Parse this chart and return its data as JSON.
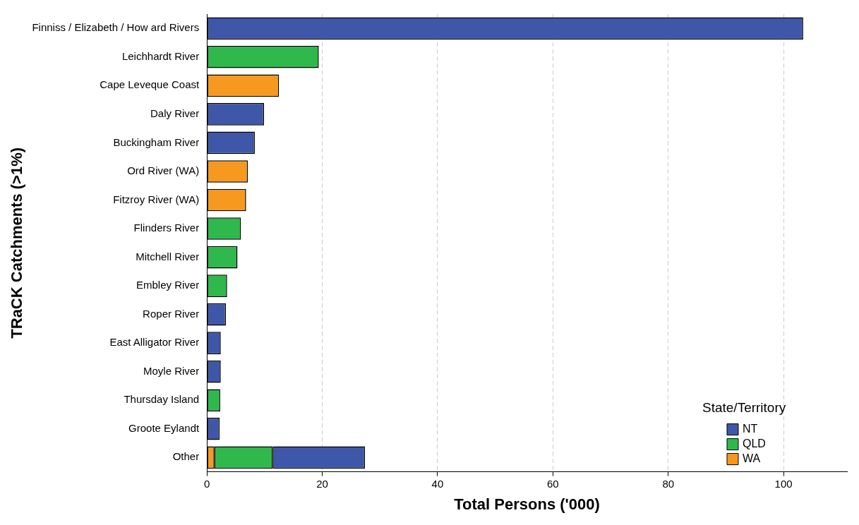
{
  "chart_data": {
    "type": "bar",
    "orientation": "horizontal",
    "stacked": true,
    "xlabel": "Total Persons ('000)",
    "ylabel": "TRaCK Catchments (>1%)",
    "legend_title": "State/Territory",
    "categories": [
      "Finniss / Elizabeth / How ard Rivers",
      "Leichhardt River",
      "Cape Leveque Coast",
      "Daly River",
      "Buckingham River",
      "Ord River (WA)",
      "Fitzroy River (WA)",
      "Flinders River",
      "Mitchell River",
      "Embley River",
      "Roper River",
      "East Alligator River",
      "Moyle River",
      "Thursday Island",
      "Groote Eylandt",
      "Other"
    ],
    "series": [
      {
        "name": "WA",
        "color": "#f7991f",
        "values": [
          null,
          null,
          12.5,
          null,
          null,
          7.1,
          6.8,
          null,
          null,
          null,
          null,
          null,
          null,
          null,
          null,
          1.3
        ]
      },
      {
        "name": "QLD",
        "color": "#2fb84b",
        "values": [
          null,
          19.4,
          null,
          null,
          null,
          null,
          null,
          5.9,
          5.3,
          3.5,
          null,
          null,
          null,
          2.3,
          null,
          10.1
        ]
      },
      {
        "name": "NT",
        "color": "#3f57a8",
        "values": [
          103.4,
          null,
          null,
          9.9,
          8.3,
          null,
          null,
          null,
          null,
          null,
          3.3,
          2.4,
          2.4,
          null,
          2.2,
          16.0
        ]
      }
    ],
    "xlim": [
      0,
      111
    ],
    "xticks": [
      0,
      20,
      40,
      60,
      80,
      100
    ],
    "grid": "x",
    "legend": "bottom right"
  }
}
